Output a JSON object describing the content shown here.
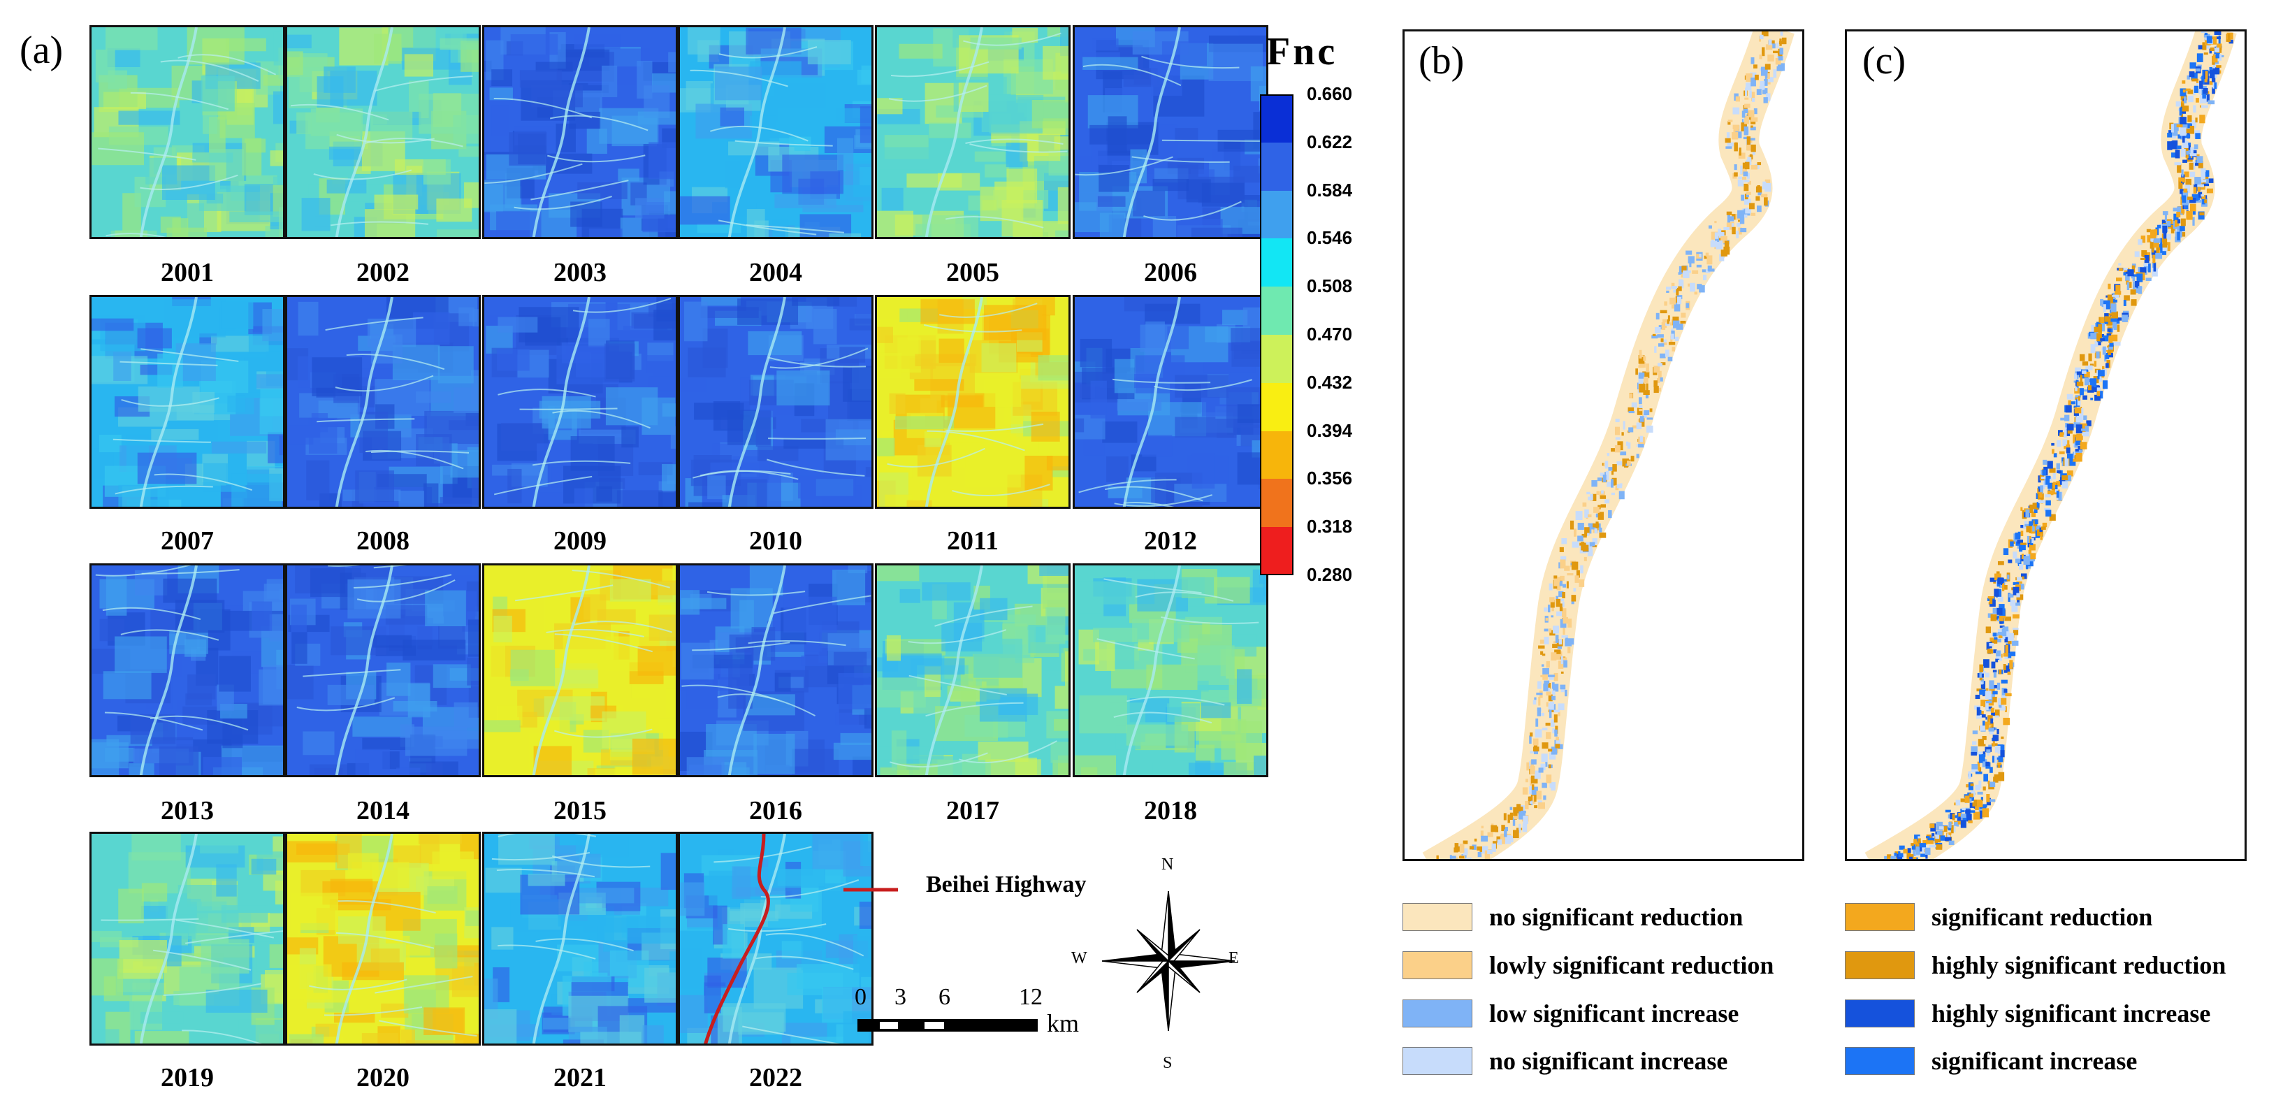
{
  "panel_a": {
    "label": "(a)",
    "years": [
      "2001",
      "2002",
      "2003",
      "2004",
      "2005",
      "2006",
      "2007",
      "2008",
      "2009",
      "2010",
      "2011",
      "2012",
      "2013",
      "2014",
      "2015",
      "2016",
      "2017",
      "2018",
      "2019",
      "2020",
      "2021",
      "2022"
    ],
    "highway_legend": "Beihei Highway",
    "scale": {
      "ticks": [
        "0",
        "3",
        "6",
        "12"
      ],
      "unit": "km"
    },
    "compass": {
      "n": "N",
      "s": "S",
      "e": "E",
      "w": "W"
    }
  },
  "colorbar": {
    "title": "Fnc",
    "ticks": [
      "0.660",
      "0.622",
      "0.584",
      "0.546",
      "0.508",
      "0.470",
      "0.432",
      "0.394",
      "0.356",
      "0.318",
      "0.280"
    ],
    "colors": [
      "#0a2fd6",
      "#2f63e6",
      "#3fa0ee",
      "#12e6f4",
      "#6fe9b0",
      "#cdf15a",
      "#f9ee12",
      "#f7b50b",
      "#f0731c",
      "#ee1e1e"
    ]
  },
  "panel_b": {
    "label": "(b)"
  },
  "panel_c": {
    "label": "(c)"
  },
  "legend": {
    "left": [
      {
        "label": "no significant reduction",
        "color": "#fbe6bd"
      },
      {
        "label": "lowly significant reduction",
        "color": "#fbd089"
      },
      {
        "label": "low significant increase",
        "color": "#7fb3f6"
      },
      {
        "label": "no significant increase",
        "color": "#c7dcfb"
      }
    ],
    "right": [
      {
        "label": "significant reduction",
        "color": "#f3a81e"
      },
      {
        "label": "highly significant reduction",
        "color": "#e0980f"
      },
      {
        "label": "highly significant increase",
        "color": "#1552dc"
      },
      {
        "label": "significant increase",
        "color": "#1c74f5"
      }
    ]
  }
}
